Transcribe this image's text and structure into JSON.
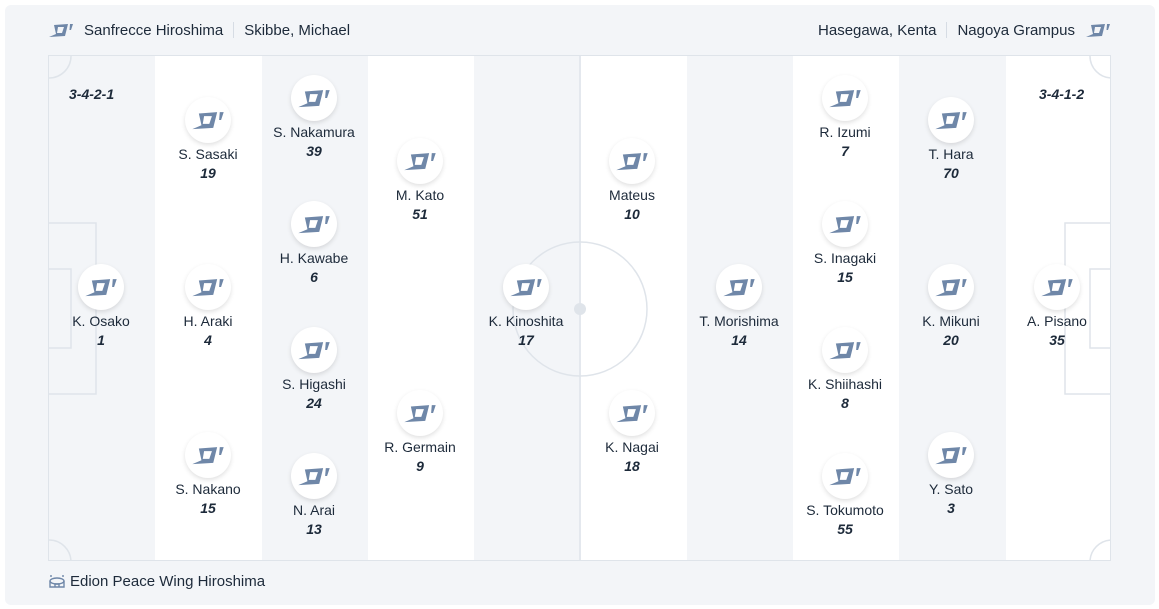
{
  "home": {
    "team": "Sanfrecce Hiroshima",
    "coach": "Skibbe, Michael",
    "formation": "3-4-2-1",
    "logo_icon": "team-logo-icon"
  },
  "away": {
    "team": "Nagoya Grampus",
    "coach": "Hasegawa, Kenta",
    "formation": "3-4-1-2",
    "logo_icon": "team-logo-icon"
  },
  "venue": {
    "name": "Edion Peace Wing Hiroshima",
    "icon": "stadium-icon"
  },
  "colors": {
    "logo": "#6f87a8",
    "pitch_stripe": "#f3f5f8",
    "pitch_line": "#dfe4ea",
    "text": "#1d2a3a"
  },
  "players": [
    {
      "name": "K. Osako",
      "number": "1"
    },
    {
      "name": "S. Sasaki",
      "number": "19"
    },
    {
      "name": "H. Araki",
      "number": "4"
    },
    {
      "name": "S. Nakano",
      "number": "15"
    },
    {
      "name": "S. Nakamura",
      "number": "39"
    },
    {
      "name": "H. Kawabe",
      "number": "6"
    },
    {
      "name": "S. Higashi",
      "number": "24"
    },
    {
      "name": "N. Arai",
      "number": "13"
    },
    {
      "name": "M. Kato",
      "number": "51"
    },
    {
      "name": "R. Germain",
      "number": "9"
    },
    {
      "name": "K. Kinoshita",
      "number": "17"
    },
    {
      "name": "Mateus",
      "number": "10"
    },
    {
      "name": "K. Nagai",
      "number": "18"
    },
    {
      "name": "T. Morishima",
      "number": "14"
    },
    {
      "name": "R. Izumi",
      "number": "7"
    },
    {
      "name": "S. Inagaki",
      "number": "15"
    },
    {
      "name": "K. Shiihashi",
      "number": "8"
    },
    {
      "name": "S. Tokumoto",
      "number": "55"
    },
    {
      "name": "T. Hara",
      "number": "70"
    },
    {
      "name": "K. Mikuni",
      "number": "20"
    },
    {
      "name": "Y. Sato",
      "number": "3"
    },
    {
      "name": "A. Pisano",
      "number": "35"
    }
  ]
}
